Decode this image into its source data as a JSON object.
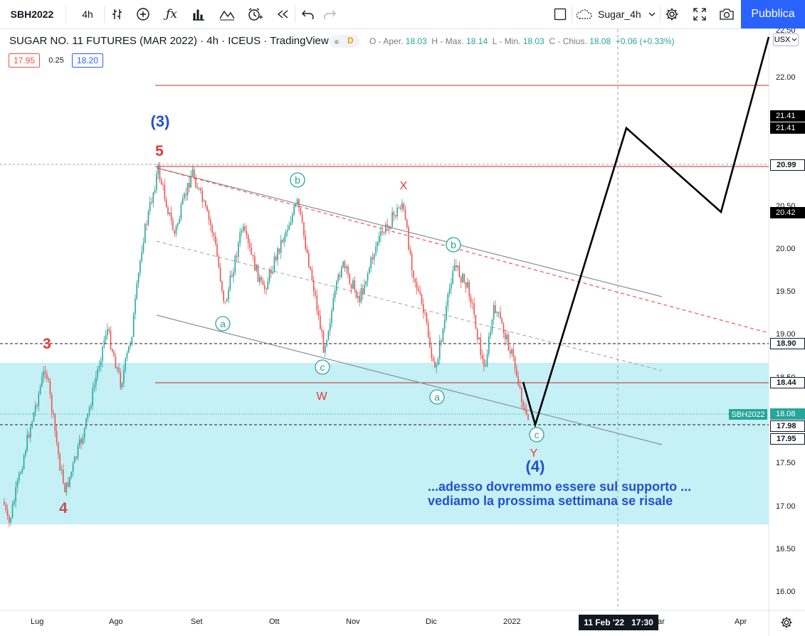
{
  "toolbar": {
    "symbol": "SBH2022",
    "interval": "4h",
    "layout_name": "Sugar_4h",
    "publish_label": "Pubblica"
  },
  "legend": {
    "title": "SUGAR NO. 11 FUTURES (MAR 2022) · 4h · ICEUS · TradingView",
    "badge": "D",
    "o_label": "O - Aper.",
    "o_value": "18.03",
    "h_label": "H - Max.",
    "h_value": "18.14",
    "l_label": "L - Min.",
    "l_value": "18.03",
    "c_label": "C - Chius.",
    "c_value": "18.08",
    "change": "+0.06 (+0.33%)",
    "bid": "17.95",
    "spread": "0.25",
    "ask": "18.20"
  },
  "axis": {
    "currency": "USX",
    "ticks": [
      "22.00",
      "20.50",
      "20.00",
      "19.50",
      "19.00",
      "18.50",
      "17.50",
      "17.00",
      "16.50",
      "16.00"
    ],
    "top_tick_partial": "22.50",
    "highlight_labels": [
      {
        "value": "21.41",
        "style": "dark"
      },
      {
        "value": "21.41",
        "style": "dark"
      },
      {
        "value": "20.99",
        "style": "light"
      },
      {
        "value": "20.42",
        "style": "dark"
      },
      {
        "value": "18.90",
        "style": "light"
      },
      {
        "value": "18.44",
        "style": "light"
      },
      {
        "value": "18.08",
        "style": "teal"
      },
      {
        "value": "17.98",
        "style": "light"
      },
      {
        "value": "17.95",
        "style": "light"
      }
    ],
    "series_tag": "SBH2022"
  },
  "time_axis": {
    "labels": [
      "Lug",
      "Ago",
      "Set",
      "Ott",
      "Nov",
      "Dic",
      "2022",
      "Apr"
    ],
    "crosshair_label": "11 Feb '22   17:30",
    "partial_label": "ar"
  },
  "annotations": {
    "wave3_blue": "(3)",
    "wave5_red": "5",
    "wave3_red": "3",
    "wave4_red": "4",
    "wave4_blue": "(4)",
    "b1": "b",
    "b2": "b",
    "a1": "a",
    "a2": "a",
    "c1": "c",
    "c2": "c",
    "x": "X",
    "w": "W",
    "y": "Y",
    "note_line1": "...adesso dovremmo essere sul supporto ...",
    "note_line2": "vediamo la prossima settimana se risale"
  },
  "colors": {
    "accent": "#2962ff",
    "up": "#26a69a",
    "down": "#ef5350",
    "zone": "#b2ebf2",
    "wave_blue": "#2250d4",
    "wave_red": "#e53935"
  }
}
